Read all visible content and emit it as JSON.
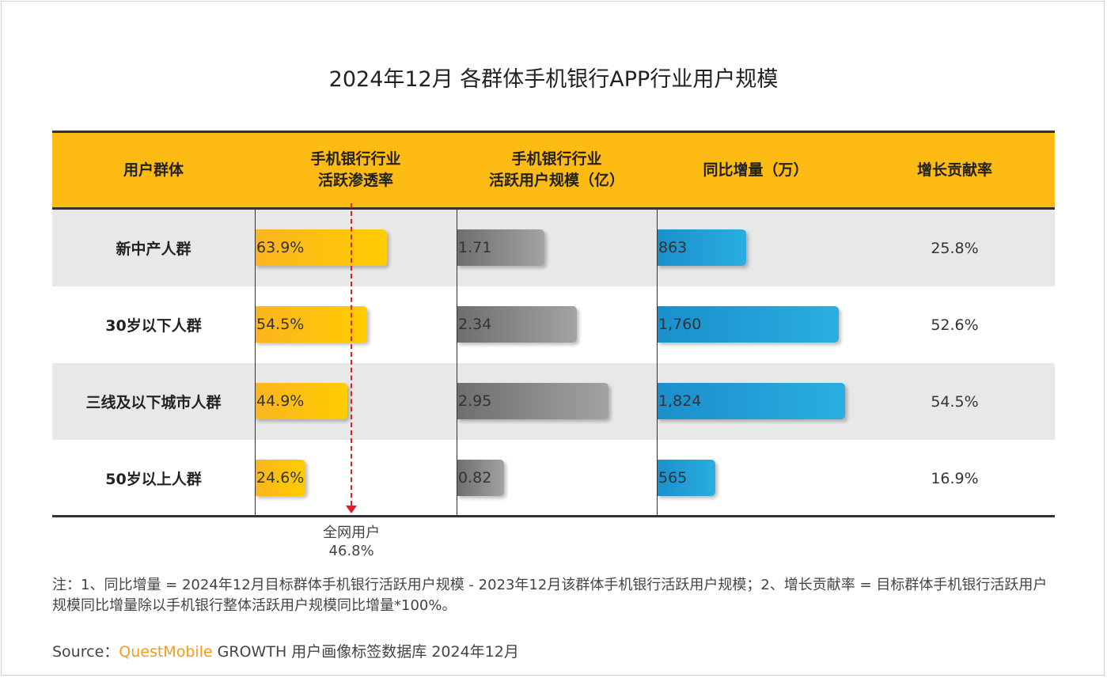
{
  "title": "2024年12月 各群体手机银行APP行业用户规模",
  "headers": [
    "用户群体",
    "手机银行行业\n活跃渗透率",
    "手机银行行业\n活跃用户规模（亿）",
    "同比增量（万）",
    "增长贡献率"
  ],
  "chart_data": {
    "type": "table",
    "title": "2024年12月 各群体手机银行APP行业用户规模",
    "categories": [
      "新中产人群",
      "30岁以下人群",
      "三线及以下城市人群",
      "50岁以上人群"
    ],
    "series": [
      {
        "name": "手机银行行业活跃渗透率",
        "values": [
          63.9,
          54.5,
          44.9,
          24.6
        ],
        "labels": [
          "63.9%",
          "54.5%",
          "44.9%",
          "24.6%"
        ],
        "color": "#fdbb14"
      },
      {
        "name": "手机银行行业活跃用户规模（亿）",
        "values": [
          1.71,
          2.34,
          2.95,
          0.82
        ],
        "labels": [
          "1.71",
          "2.34",
          "2.95",
          "0.82"
        ],
        "color": "#8a8a8a"
      },
      {
        "name": "同比增量（万）",
        "values": [
          863,
          1760,
          1824,
          565
        ],
        "labels": [
          "863",
          "1,760",
          "1,824",
          "565"
        ],
        "color": "#1fa0d8"
      },
      {
        "name": "增长贡献率",
        "values": [
          25.8,
          52.6,
          54.5,
          16.9
        ],
        "labels": [
          "25.8%",
          "52.6%",
          "54.5%",
          "16.9%"
        ]
      }
    ],
    "reference_line": {
      "series": "手机银行行业活跃渗透率",
      "value": 46.8,
      "label": "全网用户",
      "value_label": "46.8%",
      "color": "#e02020"
    }
  },
  "note": "注：1、同比增量 = 2024年12月目标群体手机银行活跃用户规模 - 2023年12月该群体手机银行活跃用户规模；2、增长贡献率 = 目标群体手机银行活跃用户规模同比增量除以手机银行整体活跃用户规模同比增量*100%。",
  "source": {
    "prefix": "Source：",
    "brand": "QuestMobile",
    "rest": " GROWTH 用户画像标签数据库 2024年12月"
  }
}
